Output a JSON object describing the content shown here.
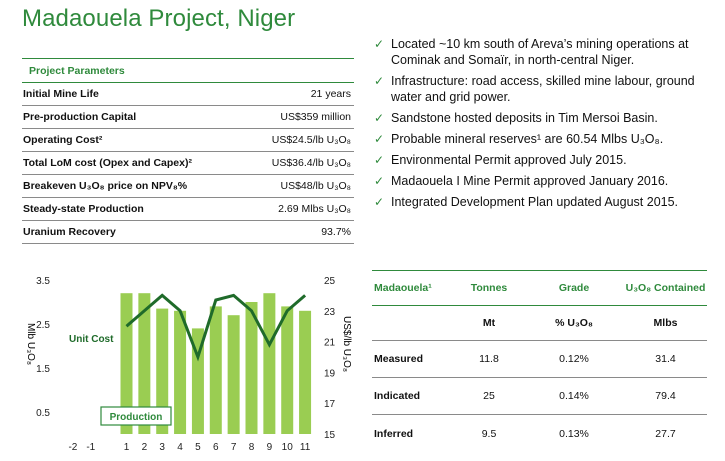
{
  "title": "Madaouela Project, Niger",
  "params": {
    "heading": "Project Parameters",
    "rows": [
      {
        "label": "Initial Mine Life",
        "value": "21 years"
      },
      {
        "label": "Pre-production Capital",
        "value": "US$359 million"
      },
      {
        "label": "Operating Cost²",
        "value": "US$24.5/lb U₃O₈"
      },
      {
        "label": "Total LoM cost (Opex and Capex)²",
        "value": "US$36.4/lb U₃O₈"
      },
      {
        "label": "Breakeven U₃O₈ price on NPV₈%",
        "value": "US$48/lb U₃O₈"
      },
      {
        "label": "Steady-state Production",
        "value": "2.69 Mlbs U₃O₈"
      },
      {
        "label": "Uranium Recovery",
        "value": "93.7%"
      }
    ]
  },
  "bullets": [
    "Located ~10 km south of Areva’s mining operations at Cominak and Somaïr, in north-central Niger.",
    "Infrastructure: road access, skilled mine labour, ground water and grid power.",
    "Sandstone hosted deposits in Tim Mersoi Basin.",
    "Probable mineral reserves¹ are 60.54 Mlbs U₃O₈.",
    "Environmental Permit approved July 2015.",
    "Madaouela I Mine Permit approved January 2016.",
    "Integrated Development Plan updated August 2015."
  ],
  "bullet_icon": "check-icon",
  "accent_color": "#2f8a3c",
  "bar_color": "#9acd52",
  "chart_data": {
    "type": "bar",
    "x_ticks": [
      "-2",
      "-1",
      "1",
      "2",
      "3",
      "4",
      "5",
      "6",
      "7",
      "8",
      "9",
      "10",
      "11"
    ],
    "categories": [
      "1",
      "2",
      "3",
      "4",
      "5",
      "6",
      "7",
      "8",
      "9",
      "10",
      "11"
    ],
    "series": [
      {
        "name": "Production",
        "axis": "left",
        "type": "bar",
        "values": [
          3.2,
          3.2,
          2.85,
          2.8,
          2.4,
          2.9,
          2.7,
          3.0,
          3.2,
          2.9,
          2.8
        ]
      },
      {
        "name": "Unit Cost",
        "axis": "right",
        "type": "line",
        "values": [
          22.0,
          23.0,
          24.0,
          23.0,
          20.0,
          23.7,
          24.0,
          23.0,
          20.8,
          23.0,
          24.0
        ]
      }
    ],
    "ylabel_left": "Mlb U₃O₈",
    "ylabel_right": "US$/lb U₃O₈",
    "left_ticks": [
      "0.5",
      "1.5",
      "2.5",
      "3.5"
    ],
    "right_ticks": [
      "15",
      "17",
      "19",
      "21",
      "23",
      "25"
    ],
    "ylim_left": [
      0,
      3.5
    ],
    "ylim_right": [
      15,
      25
    ],
    "xlim": [
      -2.5,
      11.5
    ]
  },
  "resources": {
    "headers": [
      "Madaouela¹",
      "Tonnes",
      "Grade",
      "U₃O₈ Contained"
    ],
    "units": [
      "",
      "Mt",
      "% U₃O₈",
      "Mlbs"
    ],
    "rows": [
      {
        "category": "Measured",
        "tonnes": "11.8",
        "grade": "0.12%",
        "contained": "31.4"
      },
      {
        "category": "Indicated",
        "tonnes": "25",
        "grade": "0.14%",
        "contained": "79.4"
      },
      {
        "category": "Inferred",
        "tonnes": "9.5",
        "grade": "0.13%",
        "contained": "27.7"
      }
    ]
  }
}
